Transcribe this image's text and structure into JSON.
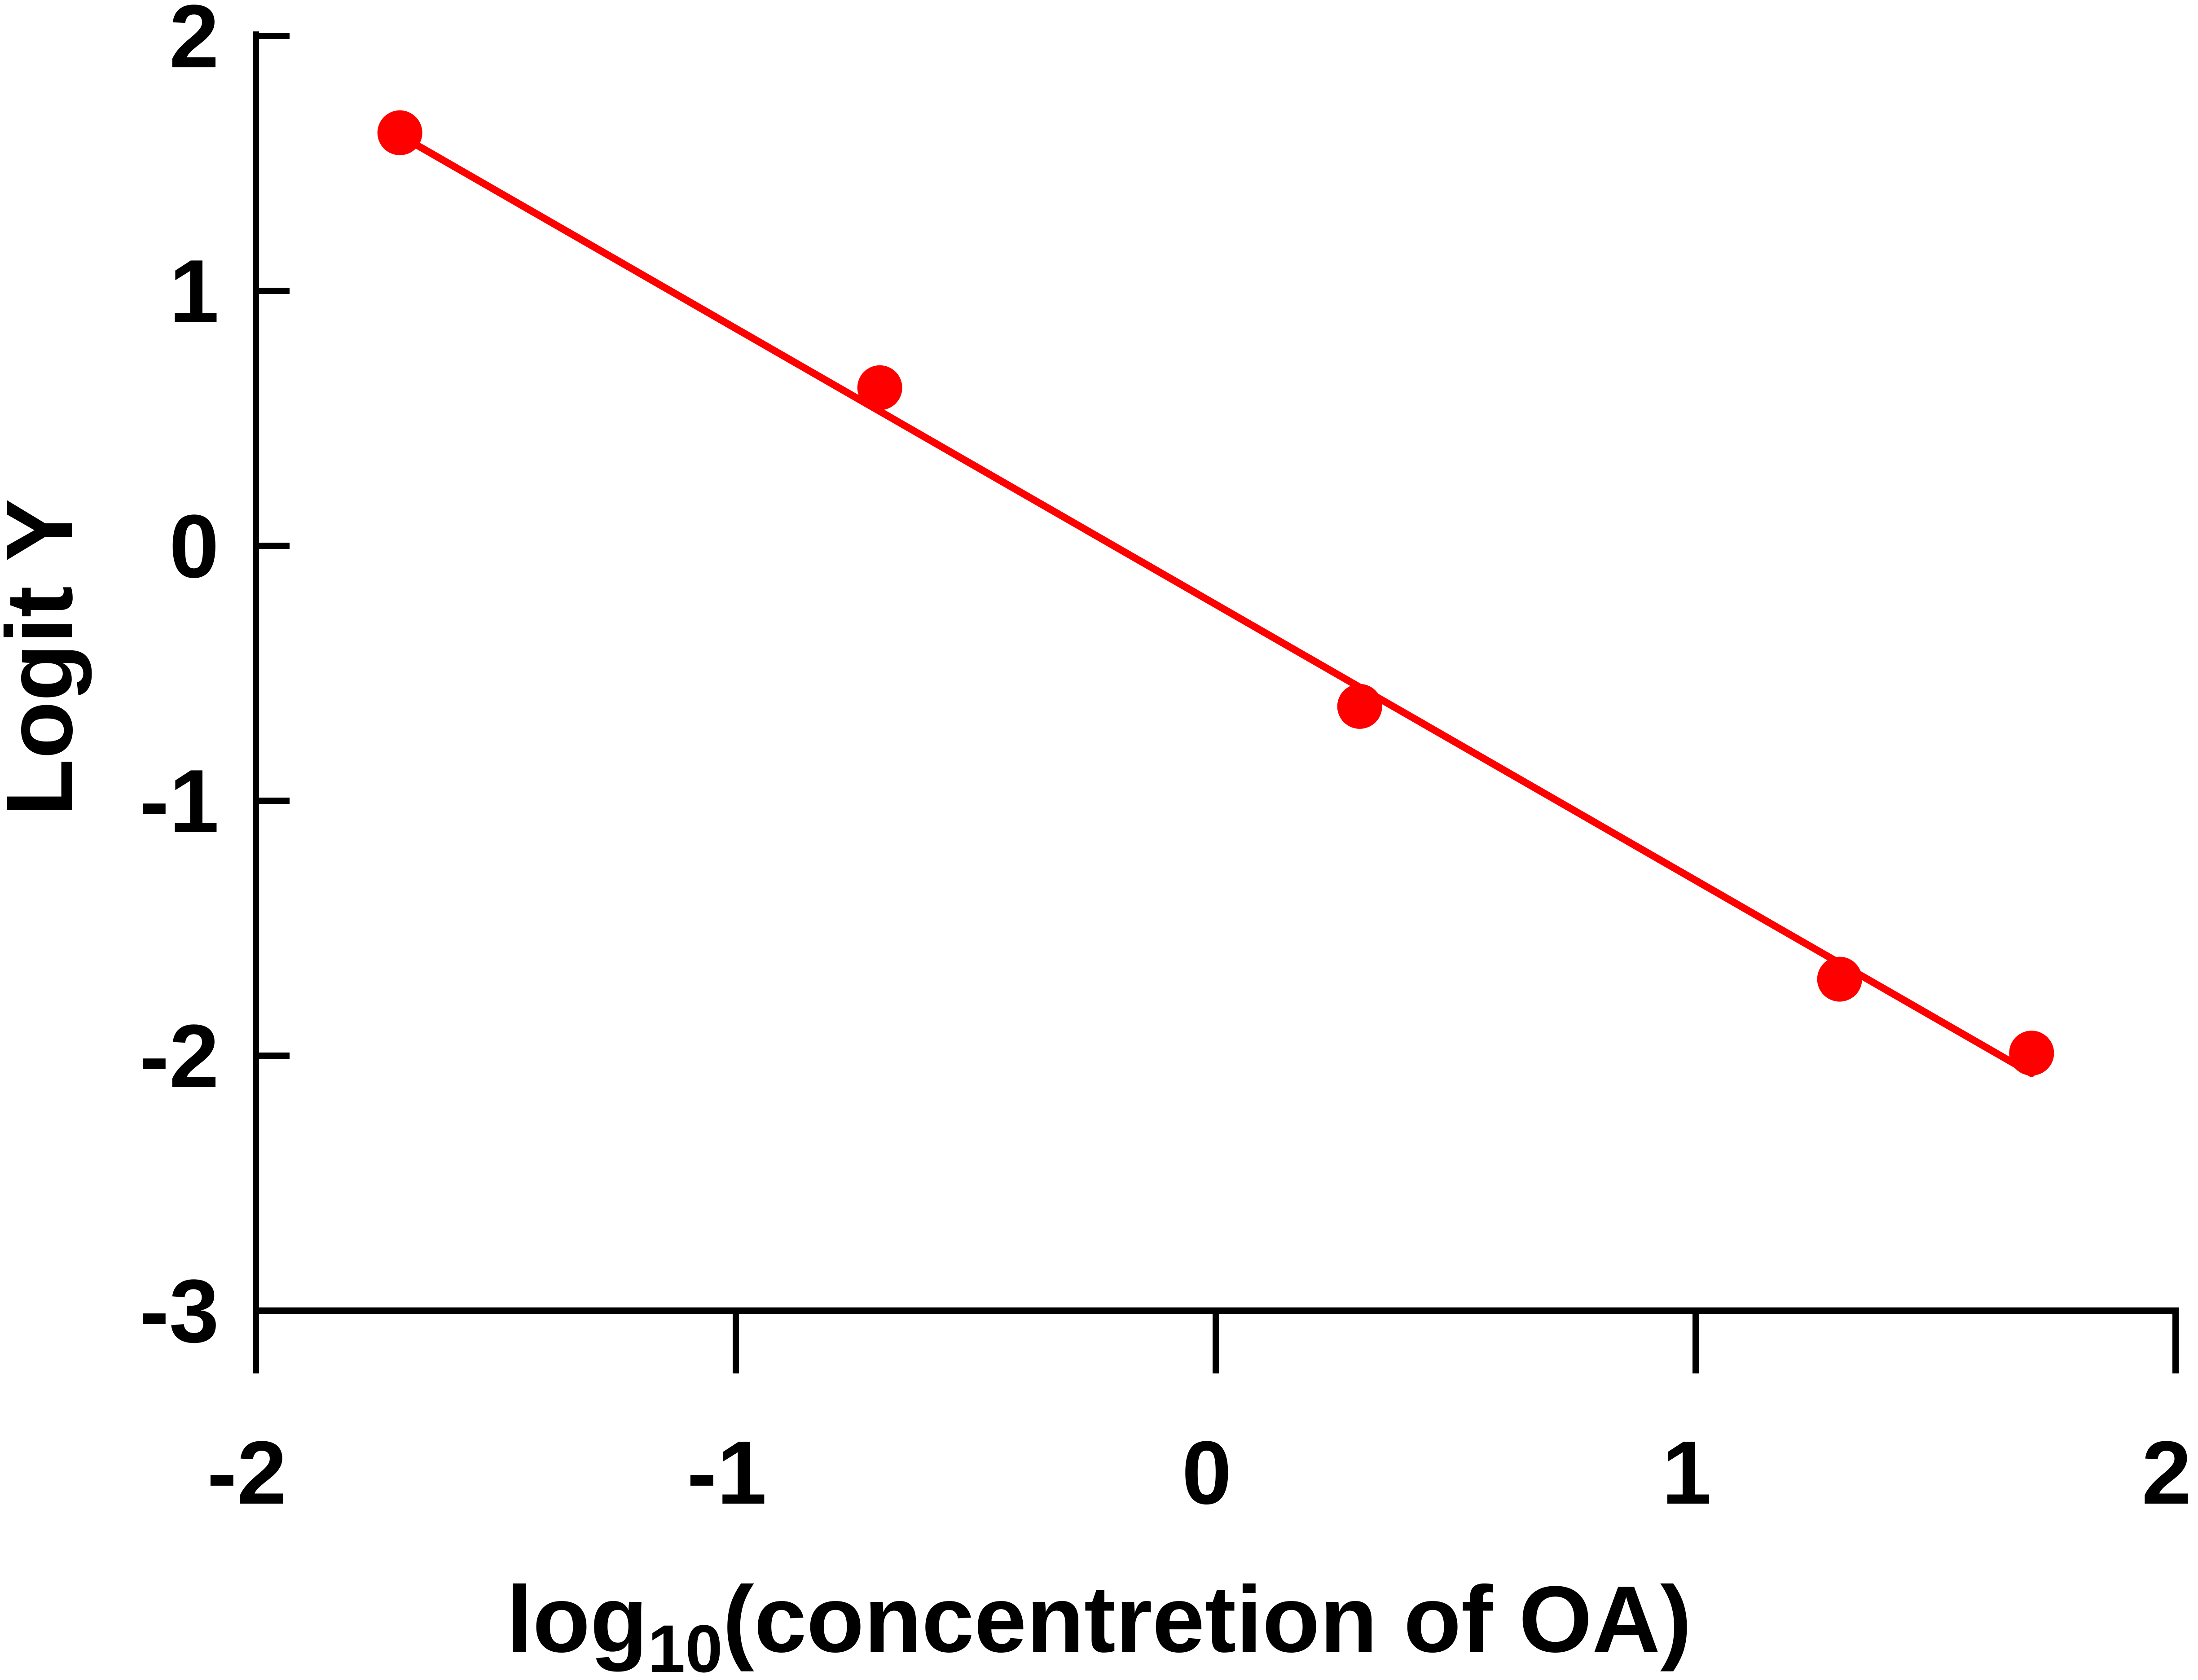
{
  "chart_data": {
    "type": "scatter",
    "xlabel": {
      "prefix": "log",
      "subscript": "10",
      "suffix": "(concentretion of OA)"
    },
    "ylabel": "Logit Y",
    "xlim": [
      -2,
      2
    ],
    "ylim": [
      -3,
      2
    ],
    "x_ticks": [
      -2,
      -1,
      0,
      1,
      2
    ],
    "y_ticks": [
      -3,
      -2,
      -1,
      0,
      1,
      2
    ],
    "x_tick_labels": [
      "-2",
      "-1",
      "0",
      "1",
      "2"
    ],
    "y_tick_labels": [
      "-3",
      "-2",
      "-1",
      "0",
      "1",
      "2"
    ],
    "grid": false,
    "series": [
      {
        "points": [
          {
            "x": -1.7,
            "y": 1.62
          },
          {
            "x": -0.7,
            "y": 0.62
          },
          {
            "x": 0.3,
            "y": -0.63
          },
          {
            "x": 1.3,
            "y": -1.7
          },
          {
            "x": 1.7,
            "y": -1.99
          }
        ],
        "color": "#ff0000"
      }
    ],
    "fit_line": {
      "from": {
        "x": -1.7,
        "y": 1.61
      },
      "to": {
        "x": 1.7,
        "y": -2.07
      },
      "color": "#ff0000"
    }
  }
}
